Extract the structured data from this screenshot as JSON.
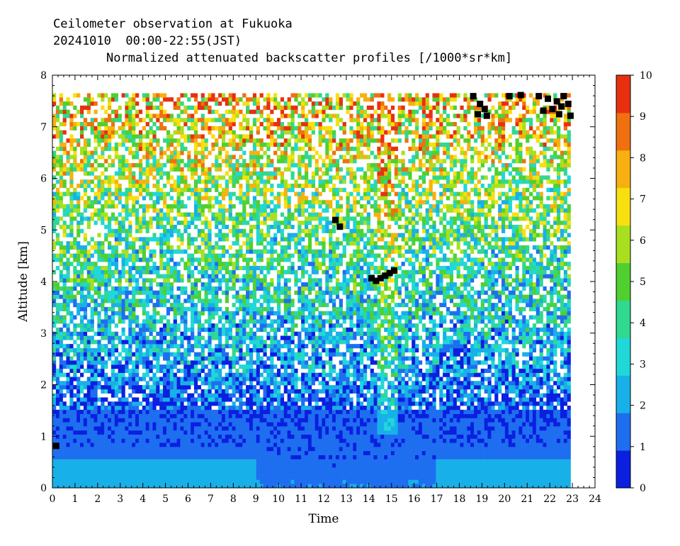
{
  "chart_data": {
    "type": "heatmap",
    "title_lines": [
      "Ceilometer observation at Fukuoka",
      "20241010  00:00-22:55(JST)",
      "Normalized attenuated backscatter profiles [/1000*sr*km]"
    ],
    "xlabel": "Time",
    "ylabel": "Altitude [km]",
    "xlim": [
      0,
      24
    ],
    "ylim": [
      0,
      8
    ],
    "x_ticks": [
      "0",
      "1",
      "2",
      "3",
      "4",
      "5",
      "6",
      "7",
      "8",
      "9",
      "10",
      "11",
      "12",
      "13",
      "14",
      "15",
      "16",
      "17",
      "18",
      "19",
      "20",
      "21",
      "22",
      "23",
      "24"
    ],
    "y_ticks": [
      "0",
      "1",
      "2",
      "3",
      "4",
      "5",
      "6",
      "7",
      "8"
    ],
    "data_time_range_hours": [
      0,
      22.92
    ],
    "data_altitude_max_km": 7.65,
    "colorbar": {
      "range": [
        0,
        10
      ],
      "tick_labels": [
        "0",
        "1",
        "2",
        "3",
        "4",
        "5",
        "6",
        "7",
        "8",
        "9",
        "10"
      ],
      "colors": [
        "#0a1fe0",
        "#1e6ef0",
        "#18b0e8",
        "#20d8d8",
        "#30d890",
        "#50d030",
        "#a8e020",
        "#f8e010",
        "#f8b010",
        "#f07010",
        "#e83010"
      ]
    },
    "background_profile": [
      {
        "altitude_km": 0.0,
        "value": 1.6
      },
      {
        "altitude_km": 0.6,
        "value": 1.2
      },
      {
        "altitude_km": 1.5,
        "value": 1.0
      },
      {
        "altitude_km": 2.0,
        "value": 1.6
      },
      {
        "altitude_km": 3.0,
        "value": 2.6
      },
      {
        "altitude_km": 4.0,
        "value": 3.6
      },
      {
        "altitude_km": 5.0,
        "value": 4.4
      },
      {
        "altitude_km": 6.0,
        "value": 5.6
      },
      {
        "altitude_km": 7.0,
        "value": 6.8
      },
      {
        "altitude_km": 7.65,
        "value": 7.4
      }
    ],
    "cloud_detections": [
      {
        "time_h": 0.15,
        "altitude_km": 0.82
      },
      {
        "time_h": 12.5,
        "altitude_km": 5.2
      },
      {
        "time_h": 12.7,
        "altitude_km": 5.07
      },
      {
        "time_h": 14.1,
        "altitude_km": 4.07
      },
      {
        "time_h": 14.3,
        "altitude_km": 4.02
      },
      {
        "time_h": 14.5,
        "altitude_km": 4.07
      },
      {
        "time_h": 14.7,
        "altitude_km": 4.12
      },
      {
        "time_h": 14.9,
        "altitude_km": 4.17
      },
      {
        "time_h": 15.1,
        "altitude_km": 4.22
      },
      {
        "time_h": 18.6,
        "altitude_km": 7.6
      },
      {
        "time_h": 18.9,
        "altitude_km": 7.45
      },
      {
        "time_h": 19.1,
        "altitude_km": 7.35
      },
      {
        "time_h": 18.8,
        "altitude_km": 7.25
      },
      {
        "time_h": 19.2,
        "altitude_km": 7.22
      },
      {
        "time_h": 20.2,
        "altitude_km": 7.6
      },
      {
        "time_h": 20.7,
        "altitude_km": 7.62
      },
      {
        "time_h": 21.5,
        "altitude_km": 7.6
      },
      {
        "time_h": 21.9,
        "altitude_km": 7.55
      },
      {
        "time_h": 22.3,
        "altitude_km": 7.5
      },
      {
        "time_h": 22.6,
        "altitude_km": 7.6
      },
      {
        "time_h": 21.7,
        "altitude_km": 7.32
      },
      {
        "time_h": 22.1,
        "altitude_km": 7.35
      },
      {
        "time_h": 22.5,
        "altitude_km": 7.4
      },
      {
        "time_h": 22.8,
        "altitude_km": 7.45
      },
      {
        "time_h": 22.9,
        "altitude_km": 7.22
      },
      {
        "time_h": 22.4,
        "altitude_km": 7.25
      }
    ]
  }
}
